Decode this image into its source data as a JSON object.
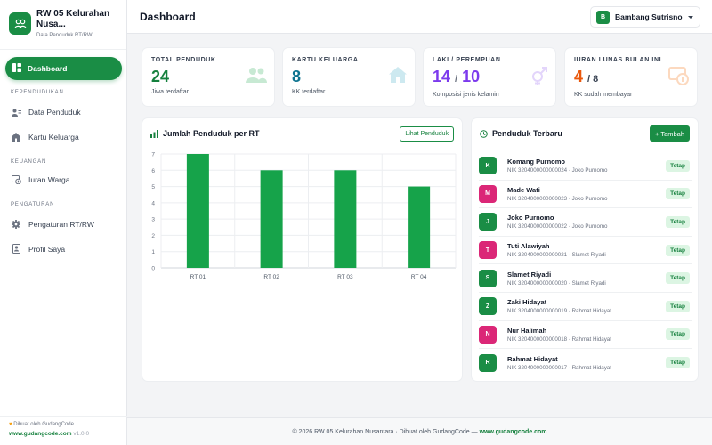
{
  "brand": {
    "title": "RW 05 Kelurahan Nusa...",
    "subtitle": "Data Penduduk RT/RW"
  },
  "sidebar": {
    "active": {
      "label": "Dashboard",
      "icon": "dashboard-icon"
    },
    "sections": [
      {
        "title": "KEPENDUDUKAN",
        "items": [
          {
            "label": "Data Penduduk",
            "icon": "users-icon"
          },
          {
            "label": "Kartu Keluarga",
            "icon": "house-icon"
          }
        ]
      },
      {
        "title": "KEUANGAN",
        "items": [
          {
            "label": "Iuran Warga",
            "icon": "money-icon"
          }
        ]
      },
      {
        "title": "PENGATURAN",
        "items": [
          {
            "label": "Pengaturan RT/RW",
            "icon": "gear-icon"
          },
          {
            "label": "Profil Saya",
            "icon": "profile-icon"
          }
        ]
      }
    ],
    "footer": {
      "credit": "Dibuat oleh GudangCode",
      "site": "www.gudangcode.com",
      "version": "v1.0.0"
    }
  },
  "topbar": {
    "title": "Dashboard",
    "user_initial": "B",
    "user_name": "Bambang Sutrisno"
  },
  "stats": [
    {
      "label": "TOTAL PENDUDUK",
      "value": "24",
      "desc": "Jiwa terdaftar",
      "color": "#15803d"
    },
    {
      "label": "KARTU KELUARGA",
      "value": "8",
      "desc": "KK terdaftar",
      "color": "#0e7490"
    },
    {
      "label": "LAKI / PEREMPUAN",
      "value_a": "14",
      "sep": "/",
      "value_b": "10",
      "desc": "Komposisi jenis kelamin",
      "color": "#7c3aed"
    },
    {
      "label": "IURAN LUNAS BULAN INI",
      "value": "4",
      "total": "/ 8",
      "desc": "KK sudah membayar",
      "color": "#ea580c"
    }
  ],
  "chart_panel": {
    "title": "Jumlah Penduduk per RT",
    "button": "Lihat Penduduk"
  },
  "chart_data": {
    "type": "bar",
    "categories": [
      "RT 01",
      "RT 02",
      "RT 03",
      "RT 04"
    ],
    "values": [
      7,
      6,
      6,
      5
    ],
    "ylim": [
      0,
      7
    ],
    "yticks": [
      0,
      1,
      2,
      3,
      4,
      5,
      6,
      7
    ],
    "bar_color": "#16a34a",
    "grid": true
  },
  "residents_panel": {
    "title": "Penduduk Terbaru",
    "button": "+ Tambah"
  },
  "residents": [
    {
      "initial": "K",
      "name": "Komang Purnomo",
      "nik": "NIK 3204000000000024 · Joko Purnomo",
      "status": "Tetap",
      "color": "#1a8d45"
    },
    {
      "initial": "M",
      "name": "Made Wati",
      "nik": "NIK 3204000000000023 · Joko Purnomo",
      "status": "Tetap",
      "color": "#db2777"
    },
    {
      "initial": "J",
      "name": "Joko Purnomo",
      "nik": "NIK 3204000000000022 · Joko Purnomo",
      "status": "Tetap",
      "color": "#1a8d45"
    },
    {
      "initial": "T",
      "name": "Tuti Alawiyah",
      "nik": "NIK 3204000000000021 · Slamet Riyadi",
      "status": "Tetap",
      "color": "#db2777"
    },
    {
      "initial": "S",
      "name": "Slamet Riyadi",
      "nik": "NIK 3204000000000020 · Slamet Riyadi",
      "status": "Tetap",
      "color": "#1a8d45"
    },
    {
      "initial": "Z",
      "name": "Zaki Hidayat",
      "nik": "NIK 3204000000000019 · Rahmat Hidayat",
      "status": "Tetap",
      "color": "#1a8d45"
    },
    {
      "initial": "N",
      "name": "Nur Halimah",
      "nik": "NIK 3204000000000018 · Rahmat Hidayat",
      "status": "Tetap",
      "color": "#db2777"
    },
    {
      "initial": "R",
      "name": "Rahmat Hidayat",
      "nik": "NIK 3204000000000017 · Rahmat Hidayat",
      "status": "Tetap",
      "color": "#1a8d45"
    }
  ],
  "footer": {
    "text": "© 2026 RW 05 Kelurahan Nusantara · Dibuat oleh GudangCode — ",
    "link": "www.gudangcode.com"
  }
}
